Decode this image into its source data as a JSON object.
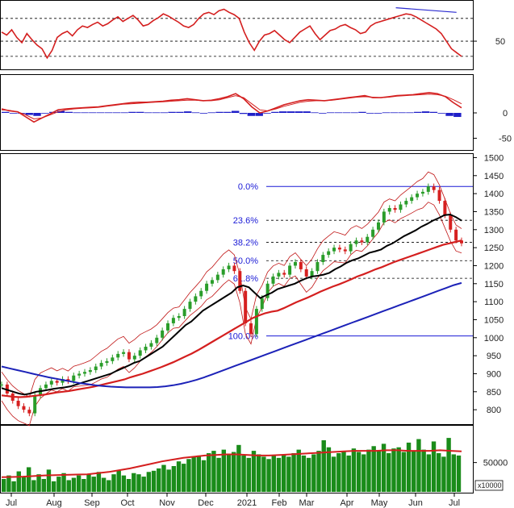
{
  "colors": {
    "price_up": "#2a9d2a",
    "price_down": "#d62020",
    "ma_red": "#d41f1f",
    "ma_blue": "#1c22b8",
    "ma_black": "#000000",
    "bollinger": "#c01515",
    "fib_line": "#1a1ad6",
    "volume": "#1a8c1a",
    "macd_hist": "#2020c8",
    "trend_line": "#2a2ad0"
  },
  "chart_data": [
    {
      "type": "line",
      "panel": "rsi",
      "title": "",
      "y_ticks": [
        50
      ],
      "ylim": [
        15,
        100
      ],
      "reference_lines": [
        80,
        50,
        30
      ],
      "x_ticks": [
        "Jul",
        "Aug",
        "Sep",
        "Oct",
        "Nov",
        "Dec",
        "2021",
        "Feb",
        "Mar",
        "Apr",
        "May",
        "Jun",
        "Jul"
      ],
      "series": [
        {
          "values": [
            62,
            58,
            65,
            55,
            48,
            60,
            52,
            45,
            40,
            28,
            38,
            55,
            60,
            63,
            57,
            65,
            70,
            68,
            72,
            75,
            70,
            73,
            78,
            82,
            76,
            80,
            84,
            78,
            70,
            72,
            77,
            81,
            86,
            83,
            79,
            75,
            70,
            68,
            72,
            80,
            86,
            88,
            85,
            90,
            92,
            88,
            85,
            80,
            62,
            48,
            38,
            50,
            58,
            60,
            64,
            58,
            52,
            48,
            55,
            62,
            66,
            70,
            60,
            52,
            58,
            64,
            66,
            70,
            72,
            68,
            65,
            60,
            62,
            70,
            74,
            76,
            78,
            80,
            82,
            84,
            86,
            85,
            82,
            78,
            74,
            70,
            66,
            60,
            50,
            40,
            35,
            30
          ]
        }
      ],
      "annotations": [
        {
          "kind": "trend_line",
          "from": [
            78,
            94
          ],
          "to": [
            90,
            88
          ]
        }
      ]
    },
    {
      "type": "line",
      "panel": "macd",
      "title": "",
      "y_ticks": [
        0,
        -50
      ],
      "ylim": [
        -70,
        70
      ],
      "series": [
        {
          "values": [
            8,
            4,
            2,
            -8,
            -18,
            -10,
            -2,
            6,
            8,
            9,
            10,
            11,
            12,
            14,
            16,
            18,
            20,
            21,
            21,
            22,
            23,
            25,
            26,
            28,
            26,
            24,
            25,
            28,
            32,
            38,
            28,
            12,
            0,
            4,
            10,
            16,
            20,
            24,
            26,
            25,
            24,
            26,
            28,
            30,
            32,
            34,
            30,
            30,
            32,
            34,
            35,
            36,
            38,
            40,
            38,
            32,
            20,
            10
          ]
        },
        {
          "values": [
            6,
            5,
            2,
            -4,
            -12,
            -10,
            -4,
            2,
            6,
            8,
            9,
            10,
            11,
            13,
            15,
            17,
            18,
            19,
            20,
            21,
            22,
            23,
            24,
            25,
            25,
            24,
            24,
            26,
            30,
            34,
            30,
            18,
            6,
            4,
            8,
            13,
            17,
            21,
            23,
            24,
            24,
            25,
            27,
            29,
            31,
            32,
            31,
            30,
            31,
            33,
            34,
            35,
            36,
            37,
            36,
            33,
            26,
            18
          ]
        }
      ],
      "histogram": [
        2,
        -1,
        0,
        -4,
        -6,
        0,
        2,
        4,
        2,
        1,
        1,
        1,
        1,
        1,
        1,
        1,
        2,
        2,
        1,
        1,
        1,
        2,
        2,
        3,
        1,
        0,
        1,
        2,
        2,
        4,
        -2,
        -6,
        -6,
        0,
        2,
        3,
        3,
        3,
        3,
        1,
        0,
        1,
        1,
        1,
        1,
        2,
        -1,
        0,
        1,
        1,
        1,
        1,
        2,
        3,
        2,
        -1,
        -6,
        -8
      ],
      "annotations": [
        {
          "kind": "trend_line",
          "from": [
            78,
            34
          ],
          "to": [
            90,
            30
          ]
        }
      ]
    },
    {
      "type": "line",
      "panel": "price",
      "title": "",
      "y_ticks": [
        800,
        850,
        900,
        950,
        1000,
        1050,
        1100,
        1150,
        1200,
        1250,
        1300,
        1350,
        1400,
        1450,
        1500
      ],
      "ylim": [
        760,
        1510
      ],
      "fibonacci": [
        {
          "label": "0.0%",
          "value": 1420
        },
        {
          "label": "23.6%",
          "value": 1326
        },
        {
          "label": "38.2%",
          "value": 1265
        },
        {
          "label": "50.0%",
          "value": 1214
        },
        {
          "label": "61.8%",
          "value": 1165
        },
        {
          "label": "100.0%",
          "value": 1005
        }
      ],
      "series": [
        {
          "name": "",
          "role": "close",
          "values": [
            870,
            845,
            825,
            810,
            800,
            790,
            840,
            860,
            870,
            880,
            875,
            885,
            880,
            895,
            900,
            905,
            910,
            920,
            930,
            935,
            945,
            955,
            960,
            940,
            950,
            965,
            975,
            985,
            1000,
            1020,
            1040,
            1055,
            1060,
            1080,
            1100,
            1115,
            1130,
            1150,
            1160,
            1175,
            1190,
            1200,
            1185,
            1130,
            1040,
            1010,
            1080,
            1110,
            1150,
            1170,
            1180,
            1175,
            1200,
            1210,
            1190,
            1170,
            1185,
            1210,
            1230,
            1240,
            1250,
            1245,
            1240,
            1260,
            1270,
            1265,
            1280,
            1300,
            1320,
            1350,
            1360,
            1355,
            1370,
            1380,
            1390,
            1400,
            1405,
            1420,
            1410,
            1380,
            1340,
            1300,
            1270,
            1262
          ]
        },
        {
          "name": "",
          "role": "ma_black",
          "values": [
            860,
            855,
            850,
            845,
            842,
            845,
            850,
            852,
            855,
            858,
            860,
            862,
            865,
            870,
            875,
            880,
            885,
            890,
            895,
            900,
            908,
            915,
            922,
            930,
            935,
            945,
            955,
            965,
            975,
            990,
            1005,
            1020,
            1035,
            1045,
            1060,
            1075,
            1085,
            1095,
            1105,
            1115,
            1125,
            1140,
            1145,
            1140,
            1125,
            1110,
            1118,
            1125,
            1135,
            1140,
            1145,
            1150,
            1158,
            1165,
            1170,
            1172,
            1175,
            1180,
            1190,
            1198,
            1208,
            1215,
            1220,
            1228,
            1236,
            1240,
            1245,
            1255,
            1262,
            1272,
            1282,
            1290,
            1298,
            1308,
            1316,
            1325,
            1332,
            1340,
            1342,
            1335,
            1325
          ]
        },
        {
          "name": "",
          "role": "ma_red",
          "values": [
            840,
            838,
            836,
            835,
            836,
            838,
            840,
            842,
            845,
            848,
            850,
            852,
            855,
            858,
            861,
            864,
            868,
            872,
            876,
            880,
            884,
            890,
            895,
            900,
            906,
            912,
            918,
            925,
            932,
            940,
            948,
            956,
            965,
            975,
            985,
            995,
            1005,
            1015,
            1025,
            1035,
            1045,
            1055,
            1062,
            1068,
            1072,
            1075,
            1082,
            1090,
            1098,
            1105,
            1112,
            1120,
            1128,
            1135,
            1142,
            1148,
            1155,
            1162,
            1170,
            1176,
            1183,
            1190,
            1196,
            1203,
            1210,
            1216,
            1222,
            1228,
            1234,
            1240,
            1246,
            1252,
            1258,
            1262,
            1266,
            1270
          ]
        },
        {
          "name": "",
          "role": "ma_blue",
          "values": [
            920,
            915,
            910,
            905,
            900,
            895,
            890,
            886,
            882,
            878,
            874,
            871,
            868,
            866,
            864,
            863,
            862,
            862,
            862,
            862,
            863,
            865,
            868,
            872,
            877,
            883,
            890,
            898,
            906,
            914,
            922,
            930,
            938,
            946,
            954,
            962,
            970,
            978,
            986,
            994,
            1002,
            1010,
            1018,
            1026,
            1034,
            1042,
            1050,
            1058,
            1066,
            1074,
            1082,
            1090,
            1098,
            1106,
            1114,
            1122,
            1130,
            1138,
            1146,
            1152
          ]
        }
      ]
    },
    {
      "type": "bar",
      "panel": "volume",
      "title": "",
      "unit_label": "x10000",
      "y_ticks": [
        50000
      ],
      "ylim": [
        0,
        110000
      ],
      "values": [
        22000,
        28000,
        18000,
        35000,
        25000,
        42000,
        20000,
        30000,
        22000,
        38000,
        18000,
        26000,
        32000,
        20000,
        24000,
        28000,
        22000,
        30000,
        26000,
        34000,
        24000,
        20000,
        30000,
        36000,
        28000,
        22000,
        32000,
        30000,
        26000,
        34000,
        36000,
        40000,
        46000,
        38000,
        44000,
        52000,
        48000,
        56000,
        60000,
        62000,
        54000,
        66000,
        70000,
        58000,
        72000,
        64000,
        68000,
        80000,
        62000,
        58000,
        70000,
        64000,
        60000,
        56000,
        62000,
        58000,
        64000,
        60000,
        66000,
        72000,
        62000,
        58000,
        64000,
        70000,
        88000,
        76000,
        60000,
        66000,
        70000,
        62000,
        74000,
        68000,
        64000,
        72000,
        78000,
        70000,
        82000,
        66000,
        74000,
        76000,
        68000,
        84000,
        70000,
        90000,
        72000,
        64000,
        86000,
        66000,
        60000,
        92000,
        64000,
        62000
      ],
      "series": [
        {
          "name": "",
          "role": "volume_ma",
          "values": [
            25000,
            25500,
            26000,
            27000,
            28000,
            28500,
            29000,
            29500,
            30000,
            32000,
            34000,
            37000,
            40000,
            44000,
            48000,
            52000,
            55000,
            58000,
            60000,
            62000,
            63000,
            64000,
            64000,
            63000,
            62000,
            62000,
            63000,
            64000,
            65000,
            66000,
            67000,
            68000,
            69000,
            70000,
            70000,
            70000,
            71000,
            71000,
            70000,
            70000,
            70000,
            71000,
            70000,
            69000
          ]
        }
      ]
    }
  ]
}
